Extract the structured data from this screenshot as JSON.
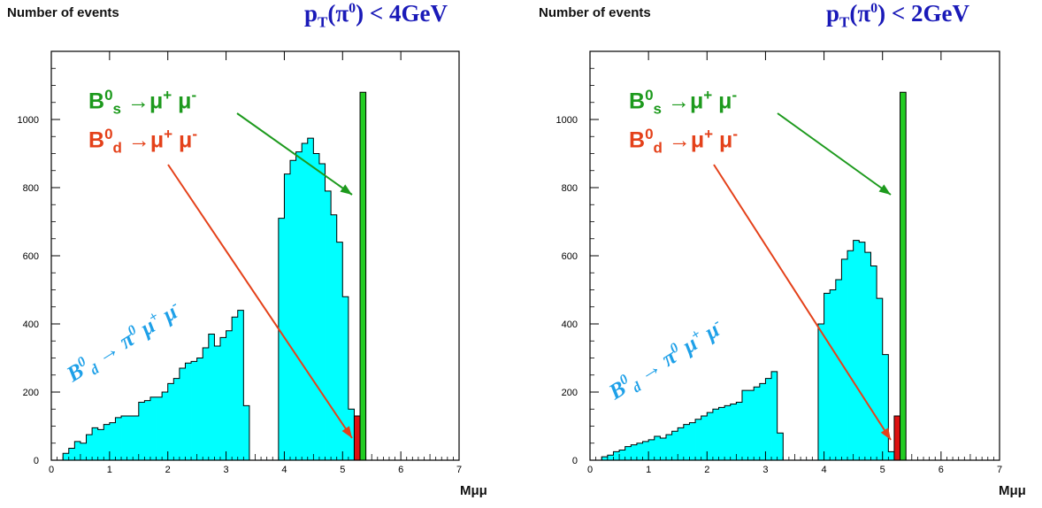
{
  "chart_data": [
    {
      "type": "bar",
      "ylabel": "Number of events",
      "xlabel": "Mμμ",
      "title_parts": {
        "p": "p",
        "sub": "T",
        "open": "(π",
        "sup": "0",
        "close": ") < 4GeV"
      },
      "xlim": [
        0,
        7
      ],
      "ylim": [
        0,
        1200
      ],
      "xticks": [
        "0",
        "1",
        "2",
        "3",
        "4",
        "5",
        "6",
        "7"
      ],
      "yticks": [
        "0",
        "200",
        "400",
        "600",
        "800",
        "1000"
      ],
      "bin_width": 0.1,
      "series": [
        {
          "name": "B0d → π0 μ+ μ-",
          "color": "#00ffff",
          "x_start": 0.2,
          "values": [
            20,
            35,
            55,
            50,
            75,
            95,
            90,
            105,
            110,
            125,
            130,
            130,
            130,
            170,
            175,
            185,
            185,
            200,
            225,
            240,
            270,
            285,
            290,
            300,
            330,
            370,
            335,
            360,
            380,
            420,
            440,
            160
          ]
        },
        {
          "name": "",
          "color": "#00ffff",
          "x_start": 3.9,
          "values": [
            710,
            840,
            880,
            905,
            930,
            945,
            900,
            870,
            790,
            720,
            640,
            480,
            150
          ]
        },
        {
          "name": "B0d → μ+ μ-",
          "color": "#dd1111",
          "x_start": 5.2,
          "values": [
            130
          ]
        },
        {
          "name": "B0s → μ+ μ-",
          "color": "#22cc22",
          "x_start": 5.3,
          "values": [
            1080
          ]
        }
      ]
    },
    {
      "type": "bar",
      "ylabel": "Number of events",
      "xlabel": "Mμμ",
      "title_parts": {
        "p": "p",
        "sub": "T",
        "open": "(π",
        "sup": "0",
        "close": ") < 2GeV"
      },
      "xlim": [
        0,
        7
      ],
      "ylim": [
        0,
        1200
      ],
      "xticks": [
        "0",
        "1",
        "2",
        "3",
        "4",
        "5",
        "6",
        "7"
      ],
      "yticks": [
        "0",
        "200",
        "400",
        "600",
        "800",
        "1000"
      ],
      "bin_width": 0.1,
      "series": [
        {
          "name": "B0d → π0 μ+ μ-",
          "color": "#00ffff",
          "x_start": 0.2,
          "values": [
            10,
            15,
            25,
            30,
            40,
            45,
            50,
            55,
            60,
            70,
            65,
            75,
            85,
            95,
            105,
            110,
            120,
            130,
            140,
            150,
            155,
            160,
            165,
            170,
            205,
            205,
            215,
            225,
            240,
            260,
            80
          ]
        },
        {
          "name": "",
          "color": "#00ffff",
          "x_start": 3.9,
          "values": [
            400,
            490,
            500,
            530,
            590,
            615,
            645,
            640,
            610,
            570,
            475,
            310,
            25
          ]
        },
        {
          "name": "B0d → μ+ μ-",
          "color": "#dd1111",
          "x_start": 5.2,
          "values": [
            130
          ]
        },
        {
          "name": "B0s → μ+ μ-",
          "color": "#22cc22",
          "x_start": 5.3,
          "values": [
            1080
          ]
        }
      ]
    }
  ],
  "annotations": {
    "bs": {
      "B": "B",
      "sup": "0",
      "sub": "s",
      "arrow": " →μ",
      "mup": "+",
      "mu": " μ",
      "mum": "-"
    },
    "bd": {
      "B": "B",
      "sup": "0",
      "sub": "d",
      "arrow": " →μ",
      "mup": "+",
      "mu": " μ",
      "mum": "-"
    },
    "bkg": {
      "B": "B",
      "sup": "0",
      "sub": "d",
      "arrow": " → π",
      "pisup": "0",
      "mu1": " μ",
      "mu1sup": "+",
      "mu2": " μ",
      "mu2sup": "-"
    }
  },
  "colors": {
    "histogram_fill": "#00ffff",
    "signal_bs": "#22cc22",
    "signal_bd": "#dd1111",
    "arrow_green": "#1d9a1d",
    "arrow_red": "#e4411a",
    "cut_label": "#1a1ab8",
    "bkg_label": "#1ea0e8"
  }
}
